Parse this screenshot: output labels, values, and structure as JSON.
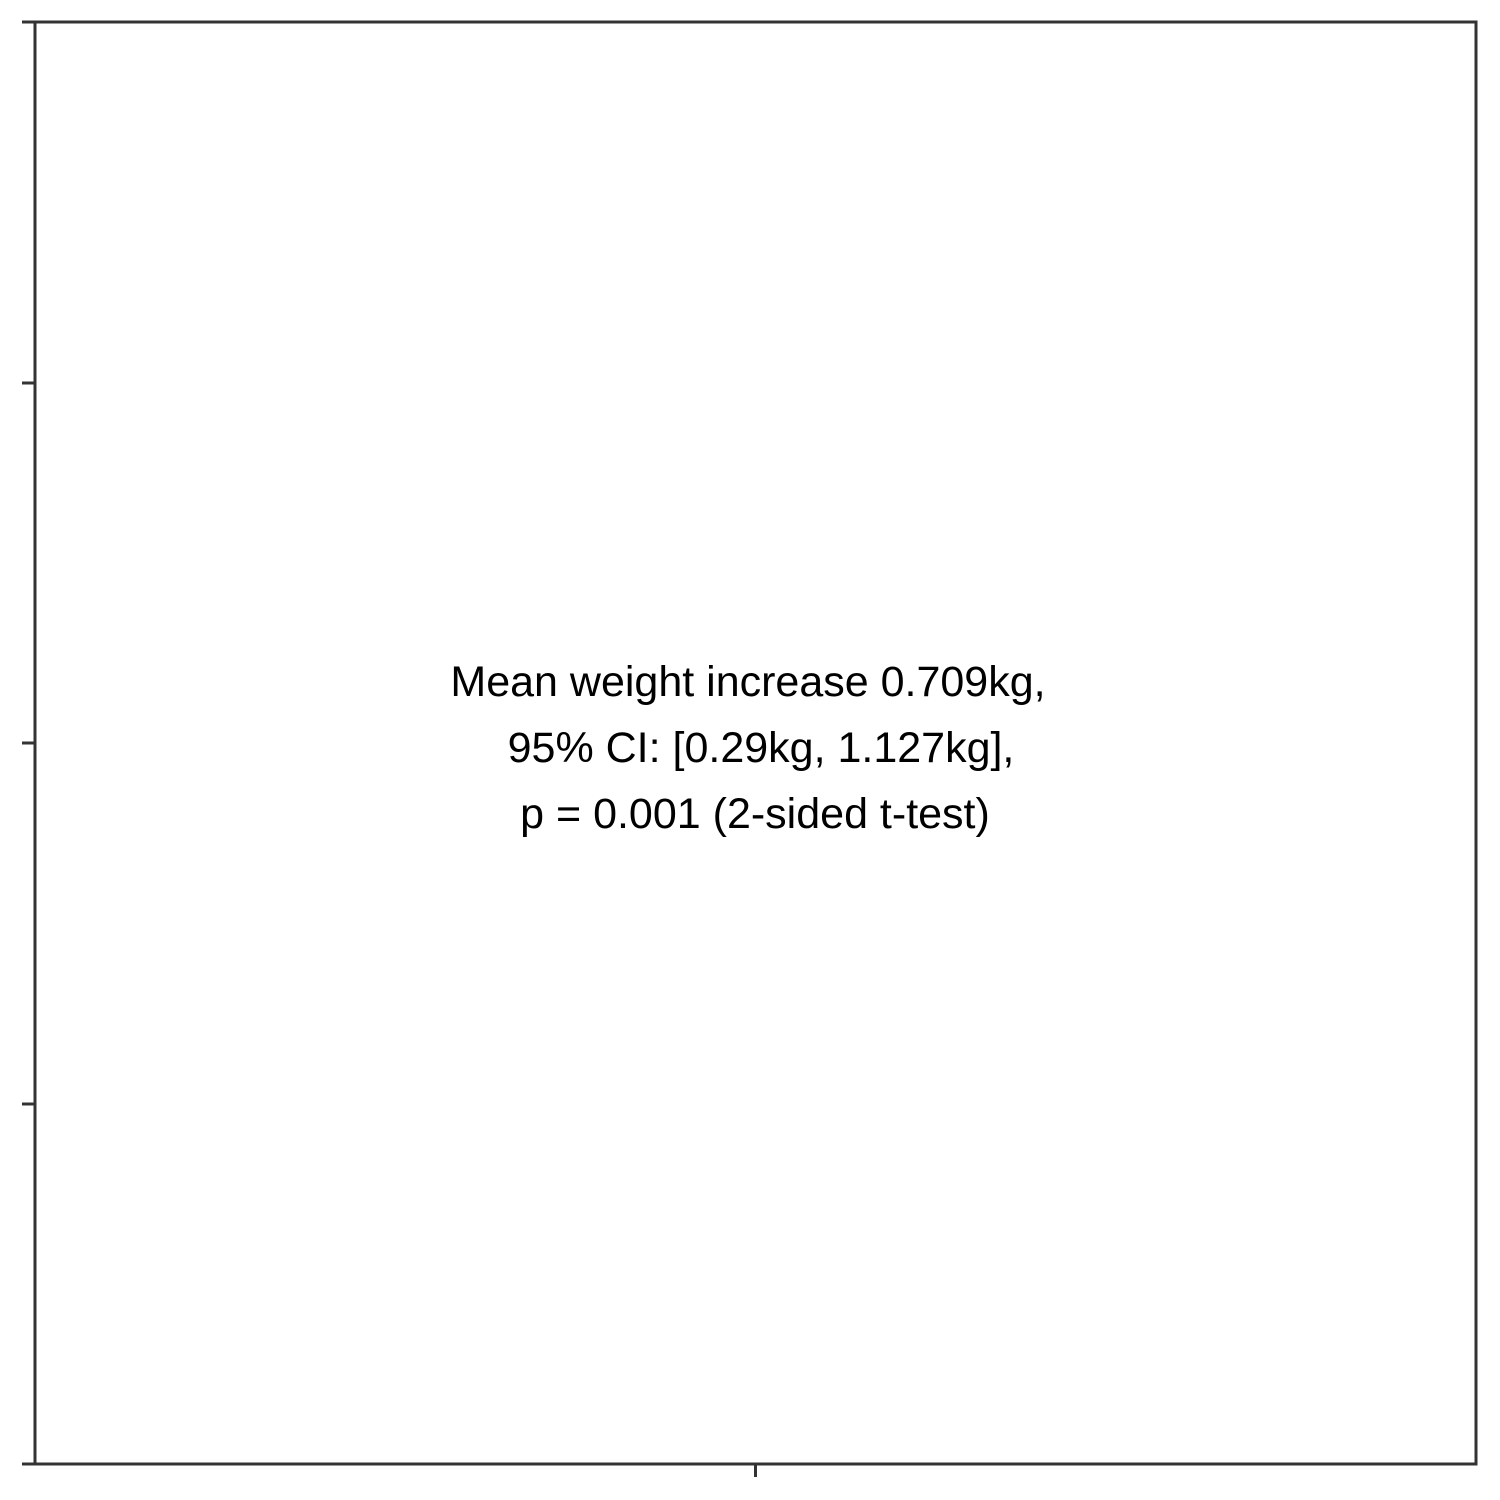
{
  "chart_data": {
    "type": "scatter",
    "title": "",
    "xlabel": "",
    "ylabel": "",
    "grid": false,
    "x_tick_count": 1,
    "y_tick_count": 5,
    "tick_labels_shown": false,
    "series": [],
    "annotation": {
      "lines": [
        "Mean weight increase 0.709kg,",
        "95% CI: [0.29kg, 1.127kg],",
        "p = 0.001 (2-sided t-test)"
      ]
    }
  },
  "colors": {
    "axis": "#333333",
    "background": "#ffffff",
    "text": "#000000"
  }
}
